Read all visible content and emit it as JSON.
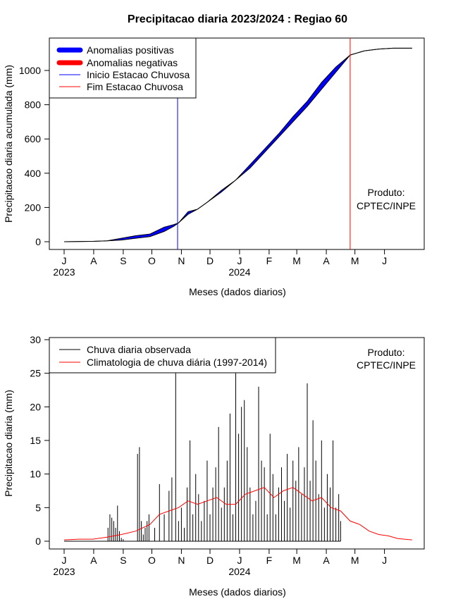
{
  "title": "Precipitacao diaria 2023/2024 : Regiao 60",
  "credit": [
    "Produto:",
    "CPTEC/INPE"
  ],
  "months": [
    "J",
    "A",
    "S",
    "O",
    "N",
    "D",
    "J",
    "F",
    "M",
    "A",
    "M",
    "J"
  ],
  "year_labels": [
    {
      "month_index": 0,
      "text": "2023"
    },
    {
      "month_index": 6,
      "text": "2024"
    }
  ],
  "colors": {
    "positive": "#0000ff",
    "negative": "#ff0000",
    "inicio": "#0000ff",
    "fim": "#ff0000",
    "observed": "#000000",
    "climatology": "#ff0000"
  },
  "chart_data": [
    {
      "type": "area",
      "id": "cumulative",
      "xlabel": "Meses (dados diarios)",
      "ylabel": "Precipitacao diaria acumulada (mm)",
      "ylim": [
        0,
        1100
      ],
      "yticks": [
        0,
        200,
        400,
        600,
        800,
        1000
      ],
      "legend_position": "top-left",
      "legend": [
        "Anomalias positivas",
        "Anomalias negativas",
        "Inicio Estacao Chuvosa",
        "Fim Estacao Chuvosa"
      ],
      "inicio_estacao_chuvosa_day": 119,
      "fim_estacao_chuvosa_day": 300,
      "x_day": [
        0,
        30,
        45,
        60,
        75,
        90,
        105,
        115,
        120,
        130,
        140,
        150,
        165,
        180,
        195,
        210,
        225,
        240,
        255,
        270,
        285,
        300,
        315,
        330,
        345,
        365
      ],
      "observed": [
        0,
        2,
        5,
        20,
        35,
        45,
        85,
        100,
        110,
        175,
        190,
        230,
        300,
        360,
        450,
        540,
        630,
        730,
        820,
        930,
        1020,
        1090,
        1115,
        1125,
        1130,
        1130
      ],
      "climatology": [
        0,
        2,
        5,
        10,
        20,
        30,
        60,
        90,
        110,
        160,
        190,
        230,
        290,
        360,
        430,
        520,
        610,
        700,
        790,
        890,
        990,
        1090,
        1115,
        1125,
        1130,
        1130
      ]
    },
    {
      "type": "bar",
      "id": "daily",
      "xlabel": "Meses (dados diarios)",
      "ylabel": "Precipitacao diaria (mm)",
      "ylim": [
        0,
        30
      ],
      "yticks": [
        0,
        5,
        10,
        15,
        20,
        25,
        30
      ],
      "legend_position": "top-left",
      "legend": [
        "Chuva diaria observada",
        "Climatologia de chuva diária (1997-2014)"
      ],
      "series": [
        {
          "name": "Chuva diaria observada",
          "x_day": [
            46,
            48,
            50,
            52,
            54,
            56,
            58,
            60,
            62,
            77,
            79,
            81,
            83,
            85,
            87,
            89,
            95,
            100,
            105,
            110,
            113,
            117,
            120,
            123,
            126,
            129,
            132,
            135,
            138,
            141,
            144,
            147,
            150,
            153,
            156,
            159,
            162,
            165,
            168,
            171,
            174,
            177,
            180,
            183,
            186,
            189,
            192,
            195,
            198,
            201,
            204,
            207,
            210,
            213,
            216,
            219,
            222,
            225,
            228,
            231,
            234,
            237,
            240,
            243,
            246,
            249,
            252,
            255,
            258,
            261,
            264,
            267,
            270,
            273,
            276,
            279,
            282,
            285,
            288,
            290
          ],
          "values": [
            2,
            4,
            3.5,
            3,
            2,
            5.3,
            1.5,
            0.5,
            0.3,
            13,
            14,
            3,
            1,
            2,
            3,
            4,
            2,
            8.5,
            4,
            7.5,
            9.5,
            25,
            3,
            5,
            2,
            8,
            15,
            4,
            10,
            7,
            3,
            6,
            12,
            4,
            8,
            11,
            17,
            5,
            8,
            12,
            19,
            4,
            25,
            16,
            20,
            21,
            14,
            8,
            4,
            6,
            23,
            12,
            11,
            4,
            16,
            10,
            4,
            8,
            11,
            6,
            13,
            5,
            12,
            9,
            14,
            7,
            11,
            23.5,
            9,
            18,
            12,
            7,
            15,
            5,
            10,
            8,
            15,
            5,
            7,
            3
          ]
        },
        {
          "name": "Climatologia de chuva diária (1997-2014)",
          "x_day": [
            0,
            15,
            30,
            45,
            60,
            75,
            90,
            100,
            110,
            120,
            130,
            140,
            150,
            160,
            170,
            180,
            190,
            200,
            210,
            220,
            230,
            240,
            250,
            260,
            270,
            280,
            290,
            300,
            310,
            320,
            330,
            340,
            350,
            365
          ],
          "values": [
            0.2,
            0.3,
            0.3,
            0.6,
            1,
            1.5,
            2.5,
            4,
            4.5,
            5,
            6,
            5.5,
            6,
            6.5,
            5.5,
            5.5,
            7,
            7.5,
            8,
            6.5,
            7.5,
            8,
            7,
            6,
            6.5,
            5,
            4.5,
            3,
            2.5,
            1.5,
            1,
            0.8,
            0.4,
            0.2
          ]
        }
      ]
    }
  ]
}
